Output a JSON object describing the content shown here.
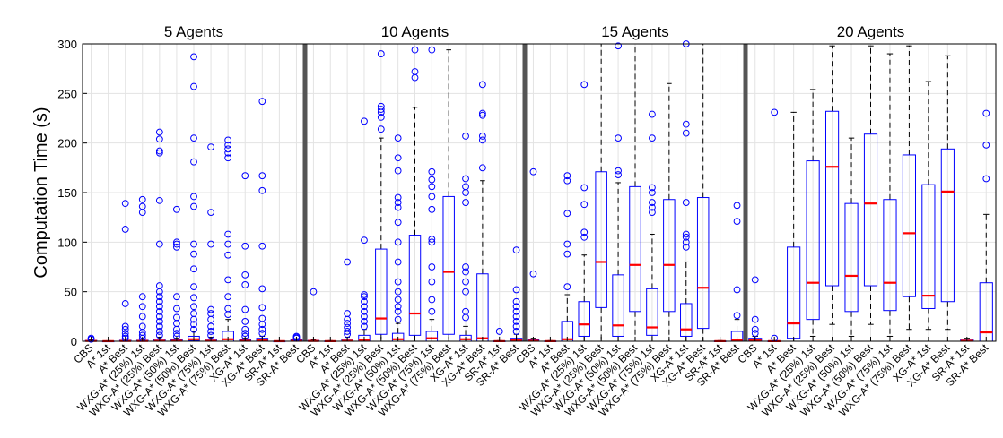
{
  "chart_data": {
    "type": "box",
    "ylabel": "Computation Time (s)",
    "ylim": [
      0,
      300
    ],
    "yticks": [
      0,
      50,
      100,
      150,
      200,
      250,
      300
    ],
    "grid": true,
    "colors": {
      "box": "#0000ff",
      "median": "#ff0000",
      "whisker": "#000000",
      "outlier": "#0000ff",
      "separator": "#555555"
    },
    "categories": [
      "CBS",
      "A* 1st",
      "A* Best",
      "WXG-A* (25%) 1st",
      "WXG-A* (25%) Best",
      "WXG-A* (50%) 1st",
      "WXG-A* (50%) Best",
      "WXG-A* (75%) 1st",
      "WXG-A* (75%) Best",
      "XG-A* 1st",
      "XG-A* Best",
      "SR-A* 1st",
      "SR-A* Best"
    ],
    "panels": [
      {
        "title": "5 Agents",
        "boxes": [
          {
            "q1": 0,
            "median": 0.3,
            "q3": 0.8,
            "whisker_low": 0,
            "whisker_high": 1.5,
            "outliers": [
              2,
              3
            ]
          },
          {
            "q1": 0,
            "median": 0.1,
            "q3": 0.2,
            "whisker_low": 0,
            "whisker_high": 0.5,
            "outliers": []
          },
          {
            "q1": 0,
            "median": 0.3,
            "q3": 1,
            "whisker_low": 0,
            "whisker_high": 2,
            "outliers": [
              3,
              5,
              8,
              12,
              15,
              38,
              113,
              139
            ]
          },
          {
            "q1": 0,
            "median": 0.3,
            "q3": 1,
            "whisker_low": 0,
            "whisker_high": 2,
            "outliers": [
              3,
              6,
              9,
              15,
              25,
              35,
              45,
              130,
              136,
              143
            ]
          },
          {
            "q1": 0,
            "median": 0.5,
            "q3": 2,
            "whisker_low": 0,
            "whisker_high": 4,
            "outliers": [
              6,
              10,
              15,
              20,
              25,
              30,
              35,
              40,
              45,
              50,
              56,
              98,
              142,
              190,
              192,
              204,
              211
            ]
          },
          {
            "q1": 0,
            "median": 0.5,
            "q3": 1.5,
            "whisker_low": 0,
            "whisker_high": 3,
            "outliers": [
              5,
              8,
              12,
              18,
              24,
              33,
              45,
              95,
              98,
              100,
              133
            ]
          },
          {
            "q1": 0.5,
            "median": 2,
            "q3": 5,
            "whisker_low": 0,
            "whisker_high": 10,
            "outliers": [
              12,
              17,
              22,
              28,
              35,
              44,
              55,
              73,
              88,
              98,
              136,
              146,
              181,
              205,
              257,
              287
            ]
          },
          {
            "q1": 0,
            "median": 0.5,
            "q3": 2,
            "whisker_low": 0,
            "whisker_high": 4,
            "outliers": [
              6,
              10,
              15,
              22,
              28,
              32,
              98,
              130,
              196
            ]
          },
          {
            "q1": 0,
            "median": 2,
            "q3": 10,
            "whisker_low": 0,
            "whisker_high": 22,
            "outliers": [
              27,
              33,
              45,
              62,
              87,
              98,
              108,
              185,
              190,
              194,
              198,
              203
            ]
          },
          {
            "q1": 0,
            "median": 0.5,
            "q3": 1.5,
            "whisker_low": 0,
            "whisker_high": 3,
            "outliers": [
              5,
              8,
              12,
              20,
              32,
              57,
              67,
              96,
              167
            ]
          },
          {
            "q1": 0,
            "median": 1,
            "q3": 3,
            "whisker_low": 0,
            "whisker_high": 5,
            "outliers": [
              8,
              12,
              17,
              23,
              34,
              53,
              96,
              152,
              167,
              242
            ]
          },
          {
            "q1": 0,
            "median": 0.1,
            "q3": 0.2,
            "whisker_low": 0,
            "whisker_high": 0.4,
            "outliers": []
          },
          {
            "q1": 0,
            "median": 0.5,
            "q3": 1.5,
            "whisker_low": 0,
            "whisker_high": 2.5,
            "outliers": [
              3,
              4,
              5
            ]
          }
        ]
      },
      {
        "title": "10 Agents",
        "boxes": [
          {
            "q1": 0,
            "median": 0.3,
            "q3": 0.8,
            "whisker_low": 0,
            "whisker_high": 1.5,
            "outliers": [
              50
            ]
          },
          {
            "q1": 0,
            "median": 0.1,
            "q3": 0.3,
            "whisker_low": 0,
            "whisker_high": 0.6,
            "outliers": []
          },
          {
            "q1": 0,
            "median": 0.5,
            "q3": 2,
            "whisker_low": 0,
            "whisker_high": 4,
            "outliers": [
              7,
              10,
              14,
              18,
              22,
              28,
              80
            ]
          },
          {
            "q1": 0,
            "median": 1.5,
            "q3": 6,
            "whisker_low": 0,
            "whisker_high": 12,
            "outliers": [
              15,
              20,
              25,
              30,
              35,
              40,
              45,
              47,
              102,
              222
            ]
          },
          {
            "q1": 7,
            "median": 23,
            "q3": 93,
            "whisker_low": 0,
            "whisker_high": 205,
            "outliers": [
              214,
              226,
              231,
              234,
              237,
              290
            ]
          },
          {
            "q1": 0,
            "median": 2,
            "q3": 8,
            "whisker_low": 0,
            "whisker_high": 18,
            "outliers": [
              22,
              30,
              35,
              42,
              50,
              60,
              80,
              100,
              120,
              135,
              140,
              145,
              172,
              185,
              205
            ]
          },
          {
            "q1": 6,
            "median": 28,
            "q3": 107,
            "whisker_low": 0,
            "whisker_high": 236,
            "outliers": [
              266,
              272,
              294
            ]
          },
          {
            "q1": 0,
            "median": 3,
            "q3": 10,
            "whisker_low": 0,
            "whisker_high": 22,
            "outliers": [
              30,
              42,
              60,
              75,
              100,
              103,
              133,
              146,
              156,
              163,
              171,
              294
            ]
          },
          {
            "q1": 7,
            "median": 70,
            "q3": 146,
            "whisker_low": 0,
            "whisker_high": 294,
            "outliers": []
          },
          {
            "q1": 0,
            "median": 2,
            "q3": 6,
            "whisker_low": 0,
            "whisker_high": 15,
            "outliers": [
              24,
              30,
              50,
              60,
              70,
              75,
              140,
              150,
              156,
              164,
              207
            ]
          },
          {
            "q1": 0,
            "median": 3,
            "q3": 68,
            "whisker_low": 0,
            "whisker_high": 162,
            "outliers": [
              175,
              203,
              207,
              228,
              230,
              259
            ]
          },
          {
            "q1": 0,
            "median": 0.1,
            "q3": 0.3,
            "whisker_low": 0,
            "whisker_high": 0.6,
            "outliers": [
              10
            ]
          },
          {
            "q1": 0,
            "median": 1,
            "q3": 3,
            "whisker_low": 0,
            "whisker_high": 7,
            "outliers": [
              10,
              15,
              20,
              25,
              30,
              35,
              40,
              52,
              92
            ]
          }
        ]
      },
      {
        "title": "15 Agents",
        "boxes": [
          {
            "q1": 0,
            "median": 0.5,
            "q3": 1.5,
            "whisker_low": 0,
            "whisker_high": 3,
            "outliers": [
              68,
              171
            ]
          },
          {
            "q1": 0,
            "median": 0.1,
            "q3": 0.3,
            "whisker_low": 0,
            "whisker_high": 0.6,
            "outliers": []
          },
          {
            "q1": 0,
            "median": 2,
            "q3": 20,
            "whisker_low": 0,
            "whisker_high": 47,
            "outliers": [
              55,
              88,
              98,
              129,
              162,
              167
            ]
          },
          {
            "q1": 5,
            "median": 17,
            "q3": 40,
            "whisker_low": 0,
            "whisker_high": 87,
            "outliers": [
              105,
              110,
              138,
              155,
              259
            ]
          },
          {
            "q1": 34,
            "median": 80,
            "q3": 171,
            "whisker_low": 0,
            "whisker_high": 300,
            "outliers": []
          },
          {
            "q1": 5,
            "median": 16,
            "q3": 67,
            "whisker_low": 0,
            "whisker_high": 160,
            "outliers": [
              168,
              172,
              205,
              298
            ]
          },
          {
            "q1": 30,
            "median": 77,
            "q3": 156,
            "whisker_low": 0,
            "whisker_high": 300,
            "outliers": []
          },
          {
            "q1": 6,
            "median": 14,
            "q3": 53,
            "whisker_low": 0,
            "whisker_high": 108,
            "outliers": [
              130,
              135,
              140,
              150,
              155,
              205,
              229
            ]
          },
          {
            "q1": 30,
            "median": 77,
            "q3": 143,
            "whisker_low": 0,
            "whisker_high": 260,
            "outliers": []
          },
          {
            "q1": 5,
            "median": 12,
            "q3": 38,
            "whisker_low": 0,
            "whisker_high": 80,
            "outliers": [
              95,
              100,
              105,
              108,
              140,
              210,
              219,
              300
            ]
          },
          {
            "q1": 13,
            "median": 54,
            "q3": 145,
            "whisker_low": 0,
            "whisker_high": 300,
            "outliers": []
          },
          {
            "q1": 0,
            "median": 0.1,
            "q3": 0.3,
            "whisker_low": 0,
            "whisker_high": 0.6,
            "outliers": []
          },
          {
            "q1": 0,
            "median": 1,
            "q3": 10,
            "whisker_low": 0,
            "whisker_high": 22,
            "outliers": [
              26,
              52,
              121,
              137
            ]
          }
        ]
      },
      {
        "title": "20 Agents",
        "boxes": [
          {
            "q1": 0,
            "median": 1,
            "q3": 3,
            "whisker_low": 0,
            "whisker_high": 5,
            "outliers": [
              8,
              12,
              22,
              62
            ]
          },
          {
            "q1": 0,
            "median": 0.1,
            "q3": 0.3,
            "whisker_low": 0,
            "whisker_high": 0.6,
            "outliers": [
              3,
              231
            ]
          },
          {
            "q1": 3,
            "median": 18,
            "q3": 95,
            "whisker_low": 0,
            "whisker_high": 231,
            "outliers": []
          },
          {
            "q1": 22,
            "median": 59,
            "q3": 182,
            "whisker_low": 5,
            "whisker_high": 254,
            "outliers": []
          },
          {
            "q1": 56,
            "median": 176,
            "q3": 232,
            "whisker_low": 17,
            "whisker_high": 298,
            "outliers": []
          },
          {
            "q1": 30,
            "median": 66,
            "q3": 139,
            "whisker_low": 5,
            "whisker_high": 205,
            "outliers": []
          },
          {
            "q1": 56,
            "median": 139,
            "q3": 209,
            "whisker_low": 17,
            "whisker_high": 298,
            "outliers": []
          },
          {
            "q1": 31,
            "median": 59,
            "q3": 143,
            "whisker_low": 5,
            "whisker_high": 290,
            "outliers": []
          },
          {
            "q1": 45,
            "median": 109,
            "q3": 188,
            "whisker_low": 12,
            "whisker_high": 298,
            "outliers": []
          },
          {
            "q1": 33,
            "median": 46,
            "q3": 158,
            "whisker_low": 12,
            "whisker_high": 262,
            "outliers": []
          },
          {
            "q1": 40,
            "median": 151,
            "q3": 194,
            "whisker_low": 12,
            "whisker_high": 288,
            "outliers": []
          },
          {
            "q1": 0,
            "median": 0.5,
            "q3": 2,
            "whisker_low": 0,
            "whisker_high": 3,
            "outliers": []
          },
          {
            "q1": 0,
            "median": 9,
            "q3": 59,
            "whisker_low": 0,
            "whisker_high": 128,
            "outliers": [
              164,
              198,
              230
            ]
          }
        ]
      }
    ]
  }
}
